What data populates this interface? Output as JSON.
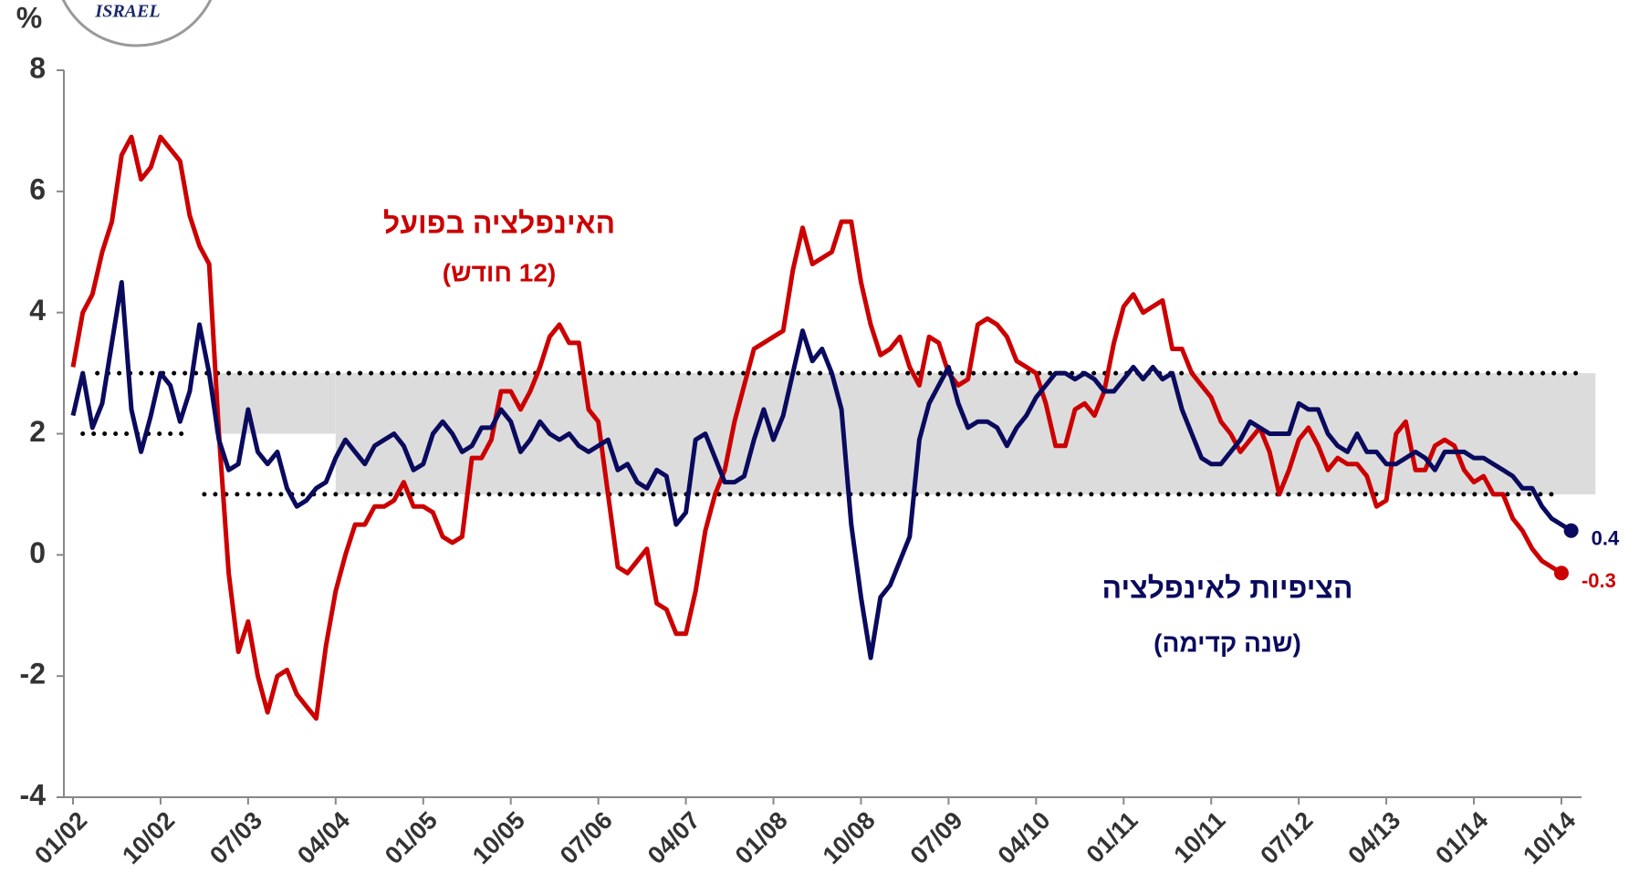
{
  "chart_data": {
    "type": "line",
    "y_unit_label": "%",
    "logo_text": "ISRAEL",
    "categories": [
      "01/02",
      null,
      null,
      null,
      null,
      null,
      null,
      null,
      null,
      "10/02",
      null,
      null,
      null,
      null,
      null,
      null,
      null,
      null,
      "07/03",
      null,
      null,
      null,
      null,
      null,
      null,
      null,
      null,
      "04/04",
      null,
      null,
      null,
      null,
      null,
      null,
      null,
      null,
      "01/05",
      null,
      null,
      null,
      null,
      null,
      null,
      null,
      null,
      "10/05",
      null,
      null,
      null,
      null,
      null,
      null,
      null,
      null,
      "07/06",
      null,
      null,
      null,
      null,
      null,
      null,
      null,
      null,
      "04/07",
      null,
      null,
      null,
      null,
      null,
      null,
      null,
      null,
      "01/08",
      null,
      null,
      null,
      null,
      null,
      null,
      null,
      null,
      "10/08",
      null,
      null,
      null,
      null,
      null,
      null,
      null,
      null,
      "07/09",
      null,
      null,
      null,
      null,
      null,
      null,
      null,
      null,
      "04/10",
      null,
      null,
      null,
      null,
      null,
      null,
      null,
      null,
      "01/11",
      null,
      null,
      null,
      null,
      null,
      null,
      null,
      null,
      "10/11",
      null,
      null,
      null,
      null,
      null,
      null,
      null,
      null,
      "07/12",
      null,
      null,
      null,
      null,
      null,
      null,
      null,
      null,
      "04/13",
      null,
      null,
      null,
      null,
      null,
      null,
      null,
      null,
      "01/14",
      null,
      null,
      null,
      null,
      null,
      null,
      null,
      null,
      "10/14",
      null
    ],
    "series": [
      {
        "color": "#cc0000",
        "values": [
          3.1,
          4.0,
          4.3,
          5.0,
          5.5,
          6.6,
          6.9,
          6.2,
          6.4,
          6.9,
          6.7,
          6.5,
          5.6,
          5.1,
          4.8,
          2.0,
          -0.3,
          -1.6,
          -1.1,
          -2.0,
          -2.6,
          -2.0,
          -1.9,
          -2.3,
          -2.5,
          -2.7,
          -1.5,
          -0.6,
          0.0,
          0.5,
          0.5,
          0.8,
          0.8,
          0.9,
          1.2,
          0.8,
          0.8,
          0.7,
          0.3,
          0.2,
          0.3,
          1.6,
          1.6,
          1.9,
          2.7,
          2.7,
          2.4,
          2.7,
          3.1,
          3.6,
          3.8,
          3.5,
          3.5,
          2.4,
          2.2,
          1.0,
          -0.2,
          -0.3,
          -0.1,
          0.1,
          -0.8,
          -0.9,
          -1.3,
          -1.3,
          -0.6,
          0.4,
          1.0,
          1.4,
          2.2,
          2.8,
          3.4,
          3.5,
          3.6,
          3.7,
          4.7,
          5.4,
          4.8,
          4.9,
          5.0,
          5.5,
          5.5,
          4.5,
          3.8,
          3.3,
          3.4,
          3.6,
          3.1,
          2.8,
          3.6,
          3.5,
          3.0,
          2.8,
          2.9,
          3.8,
          3.9,
          3.8,
          3.6,
          3.2,
          3.1,
          3.0,
          2.5,
          1.8,
          1.8,
          2.4,
          2.5,
          2.3,
          2.7,
          3.5,
          4.1,
          4.3,
          4.0,
          4.1,
          4.2,
          3.4,
          3.4,
          3.0,
          2.8,
          2.6,
          2.2,
          2.0,
          1.7,
          1.9,
          2.1,
          1.7,
          1.0,
          1.4,
          1.9,
          2.1,
          1.8,
          1.4,
          1.6,
          1.5,
          1.5,
          1.3,
          0.8,
          0.9,
          2.0,
          2.2,
          1.4,
          1.4,
          1.8,
          1.9,
          1.8,
          1.4,
          1.2,
          1.3,
          1.0,
          1.0,
          0.6,
          0.4,
          0.1,
          -0.1,
          -0.2,
          -0.3,
          null
        ]
      },
      {
        "color": "#0a0a5e",
        "values": [
          2.3,
          3.0,
          2.1,
          2.5,
          3.5,
          4.5,
          2.4,
          1.7,
          2.3,
          3.0,
          2.8,
          2.2,
          2.7,
          3.8,
          3.0,
          1.9,
          1.4,
          1.5,
          2.4,
          1.7,
          1.5,
          1.7,
          1.1,
          0.8,
          0.9,
          1.1,
          1.2,
          1.6,
          1.9,
          1.7,
          1.5,
          1.8,
          1.9,
          2.0,
          1.8,
          1.4,
          1.5,
          2.0,
          2.2,
          2.0,
          1.7,
          1.8,
          2.1,
          2.1,
          2.4,
          2.2,
          1.7,
          1.9,
          2.2,
          2.0,
          1.9,
          2.0,
          1.8,
          1.7,
          1.8,
          1.9,
          1.4,
          1.5,
          1.2,
          1.1,
          1.4,
          1.3,
          0.5,
          0.7,
          1.9,
          2.0,
          1.6,
          1.2,
          1.2,
          1.3,
          1.9,
          2.4,
          1.9,
          2.3,
          3.0,
          3.7,
          3.2,
          3.4,
          3.0,
          2.4,
          0.5,
          -0.7,
          -1.7,
          -0.7,
          -0.5,
          -0.1,
          0.3,
          1.9,
          2.5,
          2.8,
          3.1,
          2.5,
          2.1,
          2.2,
          2.2,
          2.1,
          1.8,
          2.1,
          2.3,
          2.6,
          2.8,
          3.0,
          3.0,
          2.9,
          3.0,
          2.9,
          2.7,
          2.7,
          2.9,
          3.1,
          2.9,
          3.1,
          2.9,
          3.0,
          2.4,
          2.0,
          1.6,
          1.5,
          1.5,
          1.7,
          1.9,
          2.2,
          2.1,
          2.0,
          2.0,
          2.0,
          2.5,
          2.4,
          2.4,
          2.0,
          1.8,
          1.7,
          2.0,
          1.7,
          1.7,
          1.5,
          1.5,
          1.6,
          1.7,
          1.6,
          1.4,
          1.7,
          1.7,
          1.7,
          1.6,
          1.6,
          1.5,
          1.4,
          1.3,
          1.1,
          1.1,
          0.8,
          0.6,
          0.5,
          0.4
        ]
      }
    ],
    "annotations": [
      {
        "text": "האינפלציה בפועל",
        "color": "#cc0000"
      },
      {
        "text": "(12 חודש)",
        "color": "#cc0000"
      },
      {
        "text": "הציפיות לאינפלציה",
        "color": "#0a0a5e"
      },
      {
        "text": "(שנה קדימה)",
        "color": "#0a0a5e"
      }
    ],
    "target_band": {
      "color": "#dcdcdc",
      "segments": [
        {
          "x": [
            14.5,
            27
          ],
          "y": [
            2,
            3
          ]
        },
        {
          "x": [
            27,
            156.5
          ],
          "y": [
            1,
            3
          ]
        }
      ]
    },
    "target_lines": [
      {
        "x": [
          2.5,
          155
        ],
        "y": 3
      },
      {
        "x": [
          1,
          12
        ],
        "y": 2
      },
      {
        "x": [
          13.5,
          153
        ],
        "y": 1
      }
    ],
    "ylim": [
      -4,
      8
    ],
    "yticks": [
      -4,
      -2,
      0,
      2,
      4,
      6,
      8
    ]
  }
}
